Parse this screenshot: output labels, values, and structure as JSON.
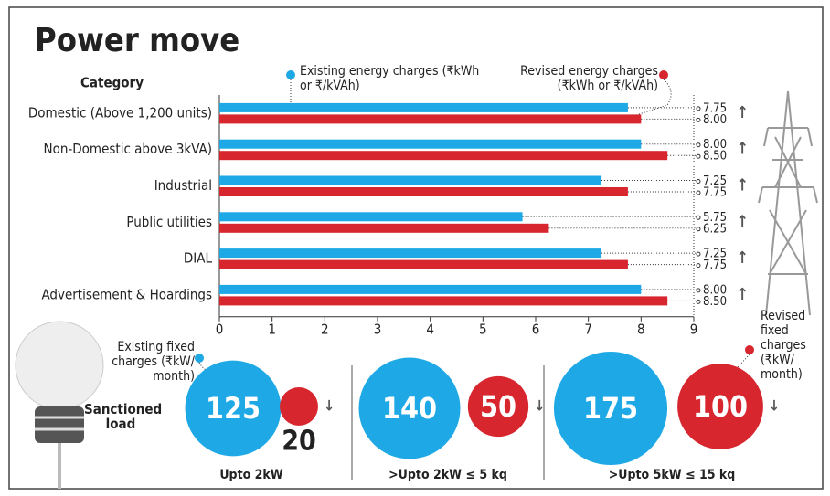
{
  "chart_data": [
    {
      "type": "hbar",
      "title": "Power move",
      "category_label": "Category",
      "categories": [
        "Domestic (Above 1,200 units)",
        "Non-Domestic above 3kVA)",
        "Industrial",
        "Public utilities",
        "DIAL",
        "Advertisement & Hoardings"
      ],
      "series": [
        {
          "name": "Existing energy charges (₹kWh or ₹/kVAh)",
          "color": "#1ea9e6",
          "values": [
            7.75,
            8.0,
            7.25,
            5.75,
            7.25,
            8.0
          ],
          "value_labels": [
            "7.75",
            "8.00",
            "7.25",
            "5.75",
            "7.25",
            "8.00"
          ]
        },
        {
          "name": "Revised  energy charges (₹kWh or ₹/kVAh)",
          "color": "#d7262e",
          "values": [
            8.0,
            8.5,
            7.75,
            6.25,
            7.75,
            8.5
          ],
          "value_labels": [
            "8.00",
            "8.50",
            "7.75",
            "6.25",
            "7.75",
            "8.50"
          ]
        }
      ],
      "xlim": [
        0,
        9
      ],
      "xticks": [
        0,
        1,
        2,
        3,
        4,
        5,
        6,
        7,
        8,
        9
      ],
      "grid": false
    },
    {
      "type": "bubble",
      "category_label": "Sanctioned load",
      "categories": [
        "Upto 2kW",
        ">Upto 2kW ≤ 5 kq",
        ">Upto 5kW ≤ 15 kq"
      ],
      "series": [
        {
          "name": "Existing fixed charges (₹kW/ month)",
          "color": "#1ea9e6",
          "values": [
            125,
            140,
            175
          ]
        },
        {
          "name": "Revised fixed charges (₹kW/ month)",
          "color": "#d7262e",
          "values": [
            20,
            50,
            100
          ]
        }
      ]
    }
  ]
}
